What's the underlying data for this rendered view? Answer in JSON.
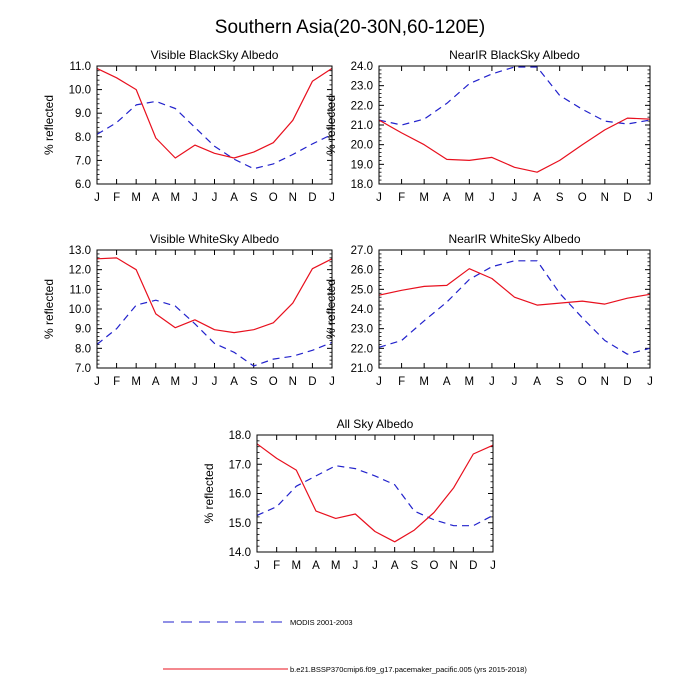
{
  "title": "Southern Asia(20-30N,60-120E)",
  "colors": {
    "obs": "#2222cc",
    "model": "#e8101e",
    "axis": "#000000"
  },
  "legend": {
    "obs_label": "MODIS 2001-2003",
    "model_label": "b.e21.BSSP370cmip6.f09_g17.pacemaker_pacific.005 (yrs 2015-2018)"
  },
  "chart_data": [
    {
      "type": "line",
      "title": "Visible BlackSky Albedo",
      "ylabel": "% reflected",
      "xlabel": "",
      "ylim": [
        6.0,
        11.0
      ],
      "yticks": [
        "6.0",
        "7.0",
        "8.0",
        "9.0",
        "10.0",
        "11.0"
      ],
      "categories": [
        "J",
        "F",
        "M",
        "A",
        "M",
        "J",
        "J",
        "A",
        "S",
        "O",
        "N",
        "D",
        "J"
      ],
      "series": [
        {
          "key": "obs",
          "style": "dashed",
          "values": [
            8.1,
            8.6,
            9.35,
            9.5,
            9.2,
            8.4,
            7.6,
            7.05,
            6.65,
            6.85,
            7.25,
            7.7,
            8.1
          ]
        },
        {
          "key": "model",
          "style": "solid",
          "values": [
            10.9,
            10.5,
            10.0,
            7.95,
            7.1,
            7.65,
            7.3,
            7.1,
            7.35,
            7.75,
            8.7,
            10.35,
            10.9
          ]
        }
      ]
    },
    {
      "type": "line",
      "title": "NearIR BlackSky Albedo",
      "ylabel": "% reflected",
      "xlabel": "",
      "ylim": [
        18.0,
        24.0
      ],
      "yticks": [
        "18.0",
        "19.0",
        "20.0",
        "21.0",
        "22.0",
        "23.0",
        "24.0"
      ],
      "categories": [
        "J",
        "F",
        "M",
        "A",
        "M",
        "J",
        "J",
        "A",
        "S",
        "O",
        "N",
        "D",
        "J"
      ],
      "series": [
        {
          "key": "obs",
          "style": "dashed",
          "values": [
            21.25,
            21.0,
            21.3,
            22.1,
            23.1,
            23.6,
            23.95,
            23.95,
            22.5,
            21.8,
            21.2,
            21.05,
            21.25
          ]
        },
        {
          "key": "model",
          "style": "solid",
          "values": [
            21.25,
            20.6,
            20.0,
            19.25,
            19.2,
            19.35,
            18.85,
            18.6,
            19.2,
            20.0,
            20.75,
            21.35,
            21.3
          ]
        }
      ]
    },
    {
      "type": "line",
      "title": "Visible WhiteSky Albedo",
      "ylabel": "% reflected",
      "xlabel": "",
      "ylim": [
        7.0,
        13.0
      ],
      "yticks": [
        "7.0",
        "8.0",
        "9.0",
        "10.0",
        "11.0",
        "12.0",
        "13.0"
      ],
      "categories": [
        "J",
        "F",
        "M",
        "A",
        "M",
        "J",
        "J",
        "A",
        "S",
        "O",
        "N",
        "D",
        "J"
      ],
      "series": [
        {
          "key": "obs",
          "style": "dashed",
          "values": [
            8.2,
            9.0,
            10.2,
            10.45,
            10.15,
            9.25,
            8.25,
            7.8,
            7.1,
            7.45,
            7.6,
            7.9,
            8.3
          ]
        },
        {
          "key": "model",
          "style": "solid",
          "values": [
            12.55,
            12.6,
            12.0,
            9.75,
            9.05,
            9.45,
            8.95,
            8.8,
            8.95,
            9.3,
            10.3,
            12.05,
            12.55
          ]
        }
      ]
    },
    {
      "type": "line",
      "title": "NearIR WhiteSky Albedo",
      "ylabel": "% reflected",
      "xlabel": "",
      "ylim": [
        21.0,
        27.0
      ],
      "yticks": [
        "21.0",
        "22.0",
        "23.0",
        "24.0",
        "25.0",
        "26.0",
        "27.0"
      ],
      "categories": [
        "J",
        "F",
        "M",
        "A",
        "M",
        "J",
        "J",
        "A",
        "S",
        "O",
        "N",
        "D",
        "J"
      ],
      "series": [
        {
          "key": "obs",
          "style": "dashed",
          "values": [
            22.05,
            22.4,
            23.4,
            24.35,
            25.5,
            26.15,
            26.45,
            26.45,
            24.8,
            23.55,
            22.4,
            21.7,
            22.0
          ]
        },
        {
          "key": "model",
          "style": "solid",
          "values": [
            24.7,
            24.95,
            25.15,
            25.2,
            26.05,
            25.55,
            24.6,
            24.2,
            24.3,
            24.4,
            24.25,
            24.55,
            24.75
          ]
        }
      ]
    },
    {
      "type": "line",
      "title": "All Sky Albedo",
      "ylabel": "% reflected",
      "xlabel": "",
      "ylim": [
        14.0,
        18.0
      ],
      "yticks": [
        "14.0",
        "15.0",
        "16.0",
        "17.0",
        "18.0"
      ],
      "categories": [
        "J",
        "F",
        "M",
        "A",
        "M",
        "J",
        "J",
        "A",
        "S",
        "O",
        "N",
        "D",
        "J"
      ],
      "series": [
        {
          "key": "obs",
          "style": "dashed",
          "values": [
            15.25,
            15.55,
            16.25,
            16.6,
            16.95,
            16.85,
            16.6,
            16.3,
            15.4,
            15.1,
            14.9,
            14.9,
            15.25
          ]
        },
        {
          "key": "model",
          "style": "solid",
          "values": [
            17.7,
            17.2,
            16.8,
            15.4,
            15.15,
            15.3,
            14.7,
            14.35,
            14.75,
            15.35,
            16.2,
            17.35,
            17.65
          ]
        }
      ]
    }
  ]
}
